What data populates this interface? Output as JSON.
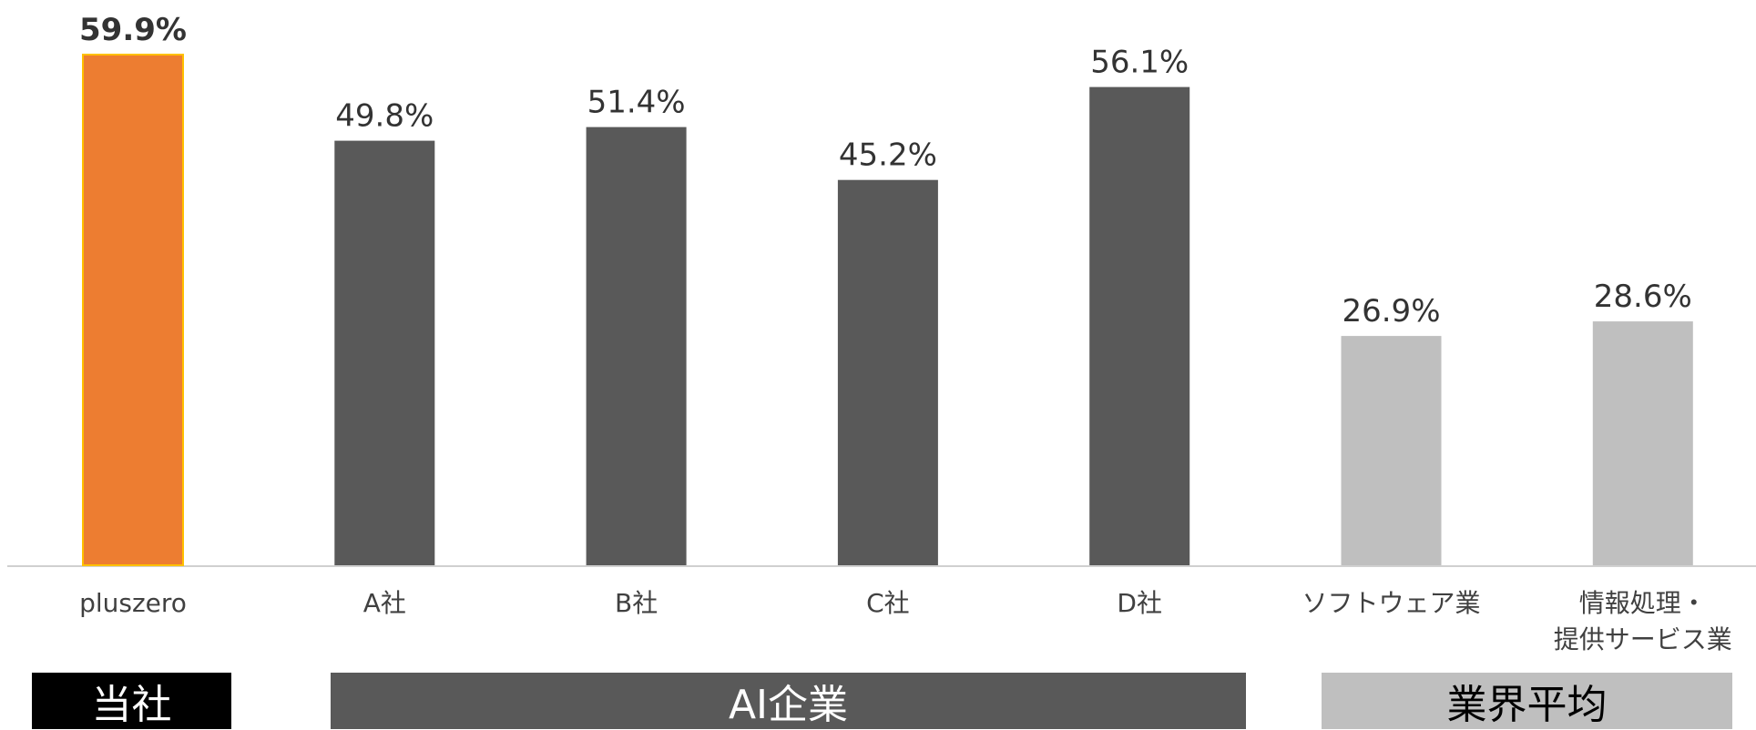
{
  "chart_data": {
    "type": "bar",
    "categories": [
      "pluszero",
      "A社",
      "B社",
      "C社",
      "D社",
      "ソフトウェア業",
      "情報処理・\n提供サービス業"
    ],
    "values": [
      59.9,
      49.8,
      51.4,
      45.2,
      56.1,
      26.9,
      28.6
    ],
    "value_labels": [
      "59.9%",
      "49.8%",
      "51.4%",
      "45.2%",
      "56.1%",
      "26.9%",
      "28.6%"
    ],
    "value_unit": "%",
    "ylim": [
      0,
      59.9
    ],
    "grid": false,
    "legend": "none",
    "highlight_index": 0,
    "bar_colors": [
      "#ED7D31",
      "#595959",
      "#595959",
      "#595959",
      "#595959",
      "#BFBFBF",
      "#BFBFBF"
    ],
    "highlight_label_color": "#ED7D31",
    "groups": [
      {
        "label": "当社",
        "color": "#000000",
        "text_color": "#FFFFFF"
      },
      {
        "label": "AI企業",
        "color": "#595959",
        "text_color": "#FFFFFF"
      },
      {
        "label": "業界平均",
        "color": "#BFBFBF",
        "text_color": "#000000"
      }
    ]
  }
}
